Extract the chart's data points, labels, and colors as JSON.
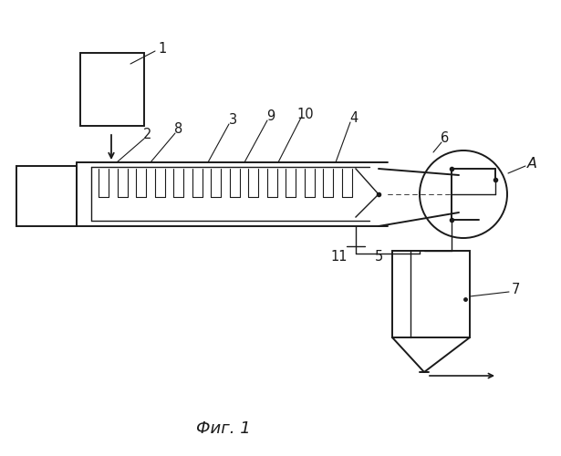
{
  "background_color": "#ffffff",
  "line_color": "#1a1a1a",
  "title": "Фиг. 1",
  "title_fontsize": 13,
  "label_fontsize": 10.5
}
